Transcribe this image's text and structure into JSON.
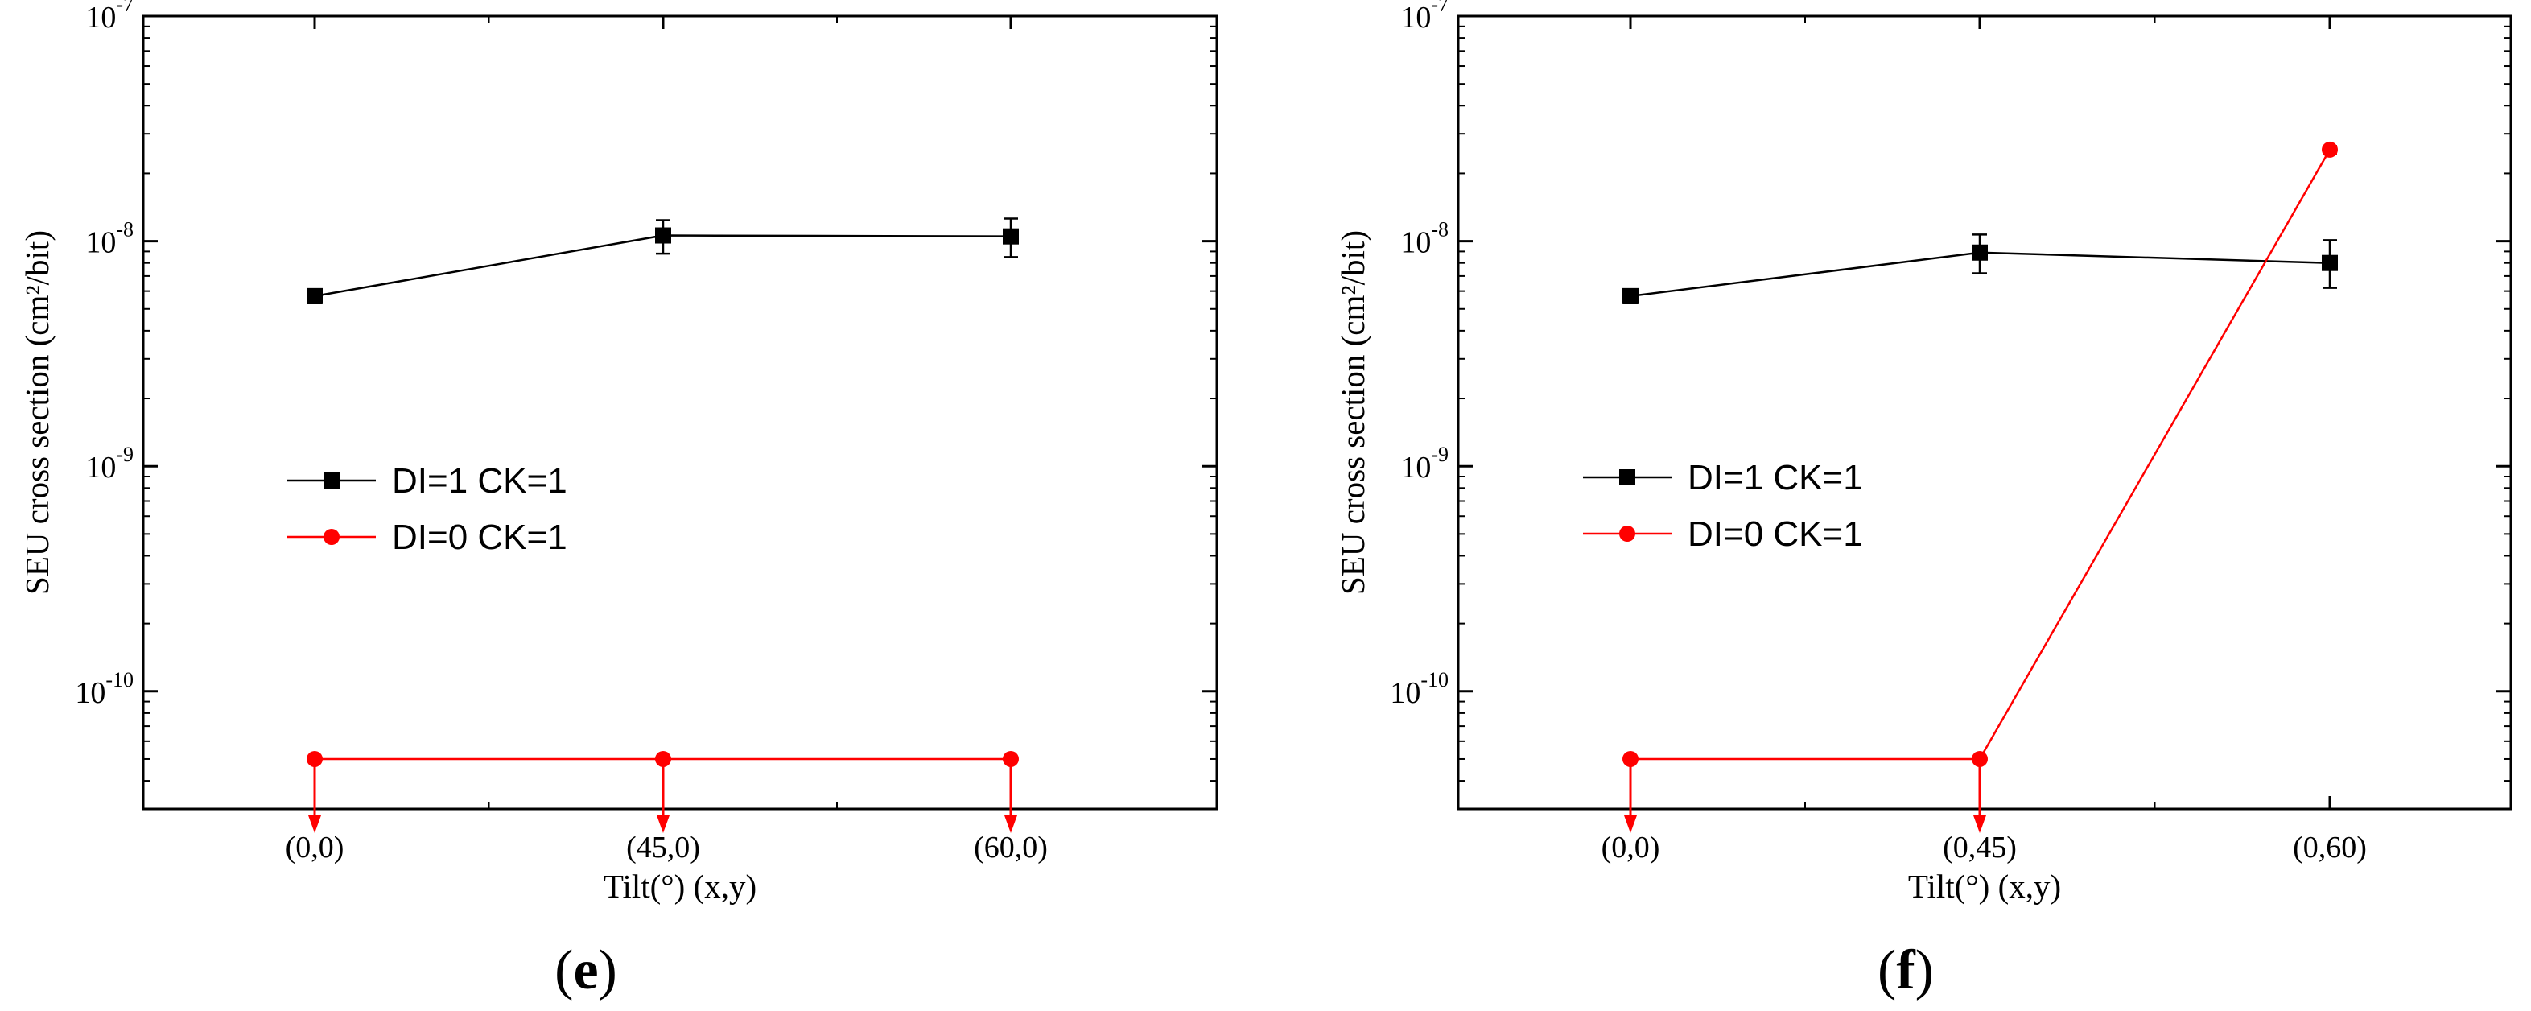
{
  "chart_data": [
    {
      "type": "line",
      "panel_label": "e",
      "xlabel": "Tilt(°) (x,y)",
      "ylabel": "SEU cross section (cm²/bit)",
      "categories": [
        "(0,0)",
        "(45,0)",
        "(60,0)"
      ],
      "y_scale": "log",
      "ylim": [
        3e-11,
        1e-07
      ],
      "y_ticks": [
        "-10",
        "-9",
        "-8",
        "-7"
      ],
      "y_tick_base": "10",
      "grid": false,
      "legend_position": "center-left",
      "series": [
        {
          "name": "DI=1 CK=1",
          "color": "#000000",
          "marker": "square",
          "values": [
            5.7e-09,
            1.06e-08,
            1.05e-08
          ],
          "error_low": [
            5.3e-09,
            8.8e-09,
            8.5e-09
          ],
          "error_high": [
            6.1e-09,
            1.24e-08,
            1.26e-08
          ],
          "upper_limit": [
            false,
            false,
            false
          ]
        },
        {
          "name": "DI=0 CK=1",
          "color": "#ff0000",
          "marker": "circle",
          "values": [
            5e-11,
            5e-11,
            5e-11
          ],
          "upper_limit": [
            true,
            true,
            true
          ]
        }
      ]
    },
    {
      "type": "line",
      "panel_label": "f",
      "xlabel": "Tilt(°) (x,y)",
      "ylabel": "SEU cross section (cm²/bit)",
      "categories": [
        "(0,0)",
        "(0,45)",
        "(0,60)"
      ],
      "y_scale": "log",
      "ylim": [
        3e-11,
        1e-07
      ],
      "y_ticks": [
        "-10",
        "-9",
        "-8",
        "-7"
      ],
      "y_tick_base": "10",
      "grid": false,
      "legend_position": "center-left",
      "series": [
        {
          "name": "DI=1 CK=1",
          "color": "#000000",
          "marker": "square",
          "values": [
            5.7e-09,
            8.9e-09,
            8e-09
          ],
          "error_low": [
            5.3e-09,
            7.2e-09,
            6.2e-09
          ],
          "error_high": [
            6.1e-09,
            1.07e-08,
            1.01e-08
          ],
          "upper_limit": [
            false,
            false,
            false
          ]
        },
        {
          "name": "DI=0 CK=1",
          "color": "#ff0000",
          "marker": "circle",
          "values": [
            5e-11,
            5e-11,
            2.55e-08
          ],
          "error_low": [
            null,
            null,
            2.45e-08
          ],
          "error_high": [
            null,
            null,
            2.65e-08
          ],
          "upper_limit": [
            true,
            true,
            false
          ]
        }
      ]
    }
  ]
}
